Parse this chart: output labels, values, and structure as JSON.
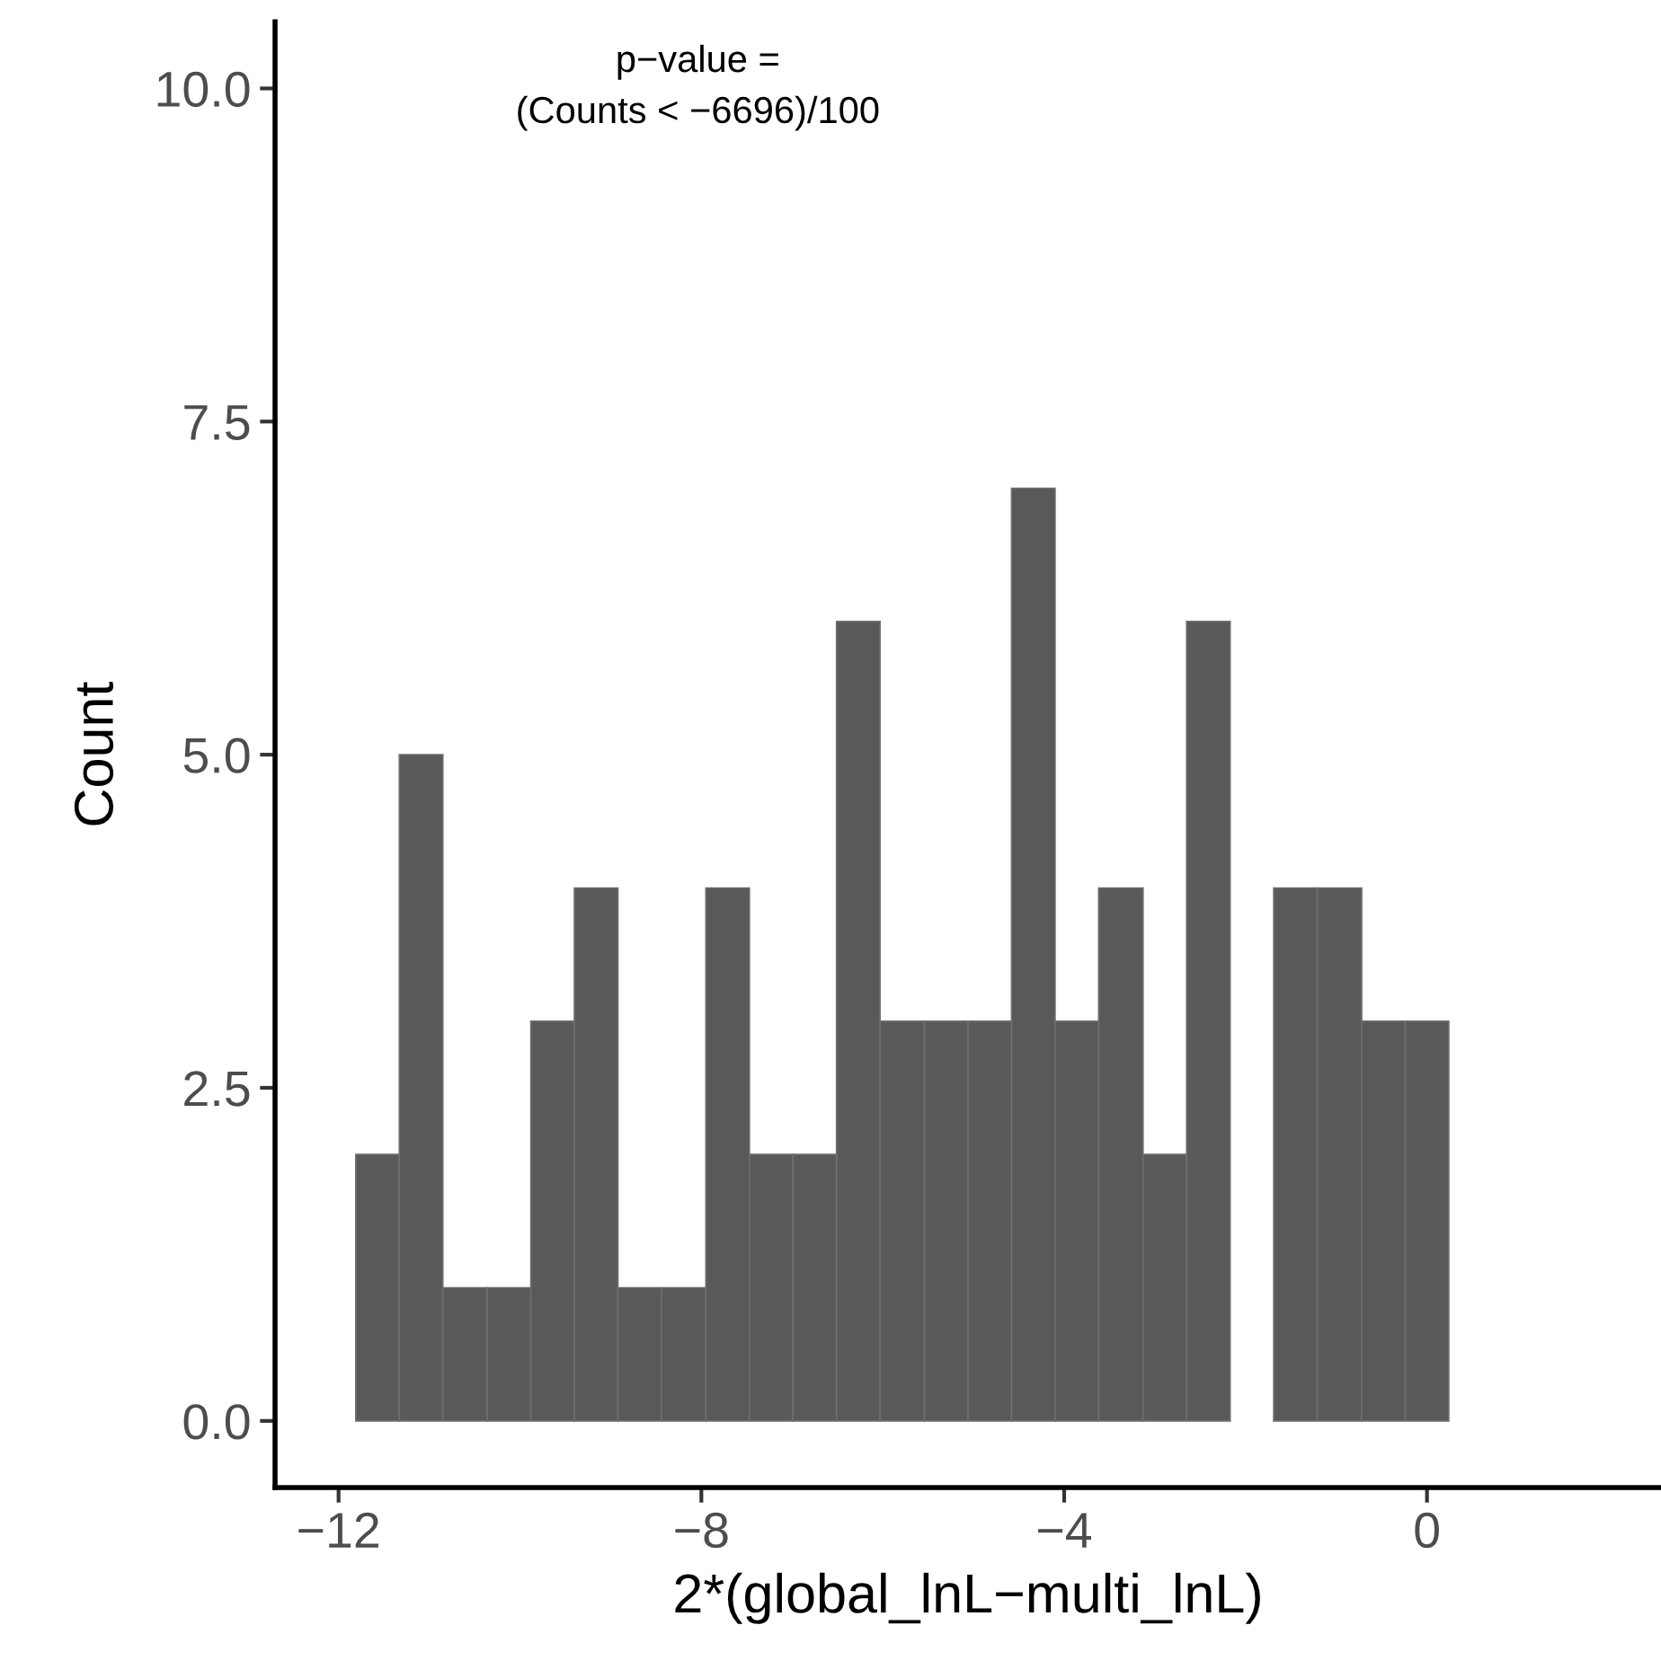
{
  "chart_data": {
    "type": "histogram",
    "xlabel": "2*(global_lnL−multi_lnL)",
    "ylabel": "Count",
    "annotations": [
      "p−value =\n(Counts < −6696)/100"
    ],
    "bins": [
      -11.81,
      -11.33,
      -10.85,
      -10.36,
      -9.88,
      -9.4,
      -8.92,
      -8.44,
      -7.95,
      -7.47,
      -6.99,
      -6.51,
      -6.03,
      -5.54,
      -5.06,
      -4.58,
      -4.1,
      -3.62,
      -3.13,
      -2.65,
      -2.17,
      -1.69,
      -1.21,
      -0.72,
      -0.24,
      0.24
    ],
    "values": [
      2,
      5,
      1,
      1,
      3,
      4,
      1,
      1,
      4,
      2,
      2,
      6,
      3,
      3,
      3,
      7,
      3,
      4,
      2,
      6,
      0,
      4,
      4,
      3,
      3
    ],
    "color": "#595959",
    "xlim": [
      -12.7,
      2.58
    ],
    "xticks": [
      {
        "value": -12,
        "label": "−12"
      },
      {
        "value": -8,
        "label": "−8"
      },
      {
        "value": -4,
        "label": "−4"
      },
      0
    ],
    "ylim": [
      -0.5,
      10.5
    ],
    "yticks": [
      {
        "value": 0,
        "label": "0.0"
      },
      {
        "value": 2.5,
        "label": "2.5"
      },
      {
        "value": 5,
        "label": "5.0"
      },
      {
        "value": 7.5,
        "label": "7.5"
      },
      {
        "value": 10,
        "label": "10.0"
      }
    ],
    "grid": false,
    "legend": false
  }
}
